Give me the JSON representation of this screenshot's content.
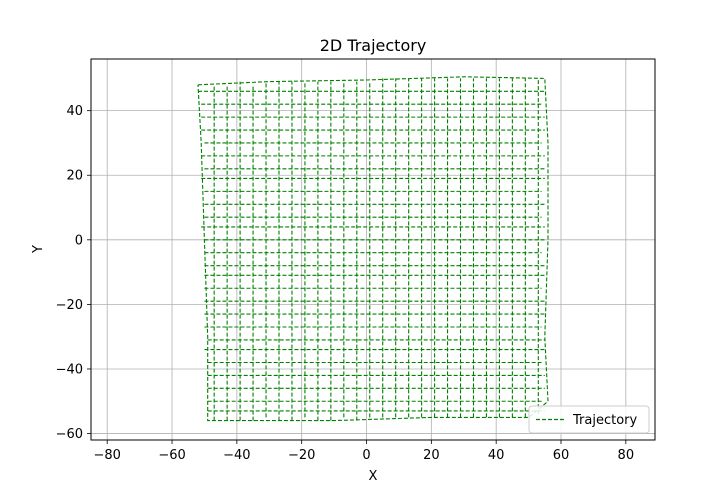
{
  "chart_data": {
    "type": "line",
    "title": "2D Trajectory",
    "xlabel": "X",
    "ylabel": "Y",
    "xlim": [
      -85,
      89
    ],
    "ylim": [
      -62,
      56
    ],
    "xticks": [
      -80,
      -60,
      -40,
      -20,
      0,
      20,
      40,
      60,
      80
    ],
    "yticks": [
      -60,
      -40,
      -20,
      0,
      20,
      40
    ],
    "grid": true,
    "legend": {
      "placement": "lower-right"
    },
    "series": [
      {
        "name": "Trajectory",
        "color": "#008000",
        "style": "dashed",
        "boundary": [
          [
            -52,
            48
          ],
          [
            -30,
            49
          ],
          [
            0,
            49.5
          ],
          [
            30,
            50.5
          ],
          [
            55,
            50
          ],
          [
            56,
            30
          ],
          [
            56,
            0
          ],
          [
            55,
            -30
          ],
          [
            56,
            -50
          ],
          [
            50,
            -55
          ],
          [
            20,
            -55
          ],
          [
            -10,
            -56
          ],
          [
            -49,
            -56
          ],
          [
            -49,
            -30
          ],
          [
            -50,
            0
          ],
          [
            -51,
            30
          ],
          [
            -52,
            48
          ]
        ],
        "horizontal_passes": [
          {
            "y": 46,
            "x": [
              -52,
              55
            ]
          },
          {
            "y": 42,
            "x": [
              -51,
              54
            ]
          },
          {
            "y": 38,
            "x": [
              -51,
              55
            ]
          },
          {
            "y": 34,
            "x": [
              -51,
              55
            ]
          },
          {
            "y": 30,
            "x": [
              -50,
              54
            ]
          },
          {
            "y": 26,
            "x": [
              -51,
              55
            ]
          },
          {
            "y": 22,
            "x": [
              -50,
              55
            ]
          },
          {
            "y": 19,
            "x": [
              -51,
              55
            ]
          },
          {
            "y": 15,
            "x": [
              -50,
              54
            ]
          },
          {
            "y": 11,
            "x": [
              -50,
              55
            ]
          },
          {
            "y": 7,
            "x": [
              -50,
              54
            ]
          },
          {
            "y": 4,
            "x": [
              -51,
              55
            ]
          },
          {
            "y": 0,
            "x": [
              -50,
              55
            ]
          },
          {
            "y": -4,
            "x": [
              -50,
              54
            ]
          },
          {
            "y": -8,
            "x": [
              -50,
              55
            ]
          },
          {
            "y": -11,
            "x": [
              -50,
              55
            ]
          },
          {
            "y": -15,
            "x": [
              -50,
              54
            ]
          },
          {
            "y": -19,
            "x": [
              -50,
              55
            ]
          },
          {
            "y": -23,
            "x": [
              -50,
              55
            ]
          },
          {
            "y": -27,
            "x": [
              -50,
              54
            ]
          },
          {
            "y": -31,
            "x": [
              -49,
              55
            ]
          },
          {
            "y": -34,
            "x": [
              -50,
              55
            ]
          },
          {
            "y": -38,
            "x": [
              -49,
              54
            ]
          },
          {
            "y": -42,
            "x": [
              -49,
              55
            ]
          },
          {
            "y": -46,
            "x": [
              -49,
              55
            ]
          },
          {
            "y": -50,
            "x": [
              -49,
              54
            ]
          },
          {
            "y": -53,
            "x": [
              -49,
              55
            ]
          }
        ],
        "vertical_passes": [
          {
            "x": -47,
            "y": [
              -56,
              48
            ]
          },
          {
            "x": -43,
            "y": [
              -56,
              48
            ]
          },
          {
            "x": -39,
            "y": [
              -56,
              49
            ]
          },
          {
            "x": -35,
            "y": [
              -56,
              48
            ]
          },
          {
            "x": -31,
            "y": [
              -55,
              49
            ]
          },
          {
            "x": -27,
            "y": [
              -56,
              49
            ]
          },
          {
            "x": -23,
            "y": [
              -56,
              49
            ]
          },
          {
            "x": -19,
            "y": [
              -55,
              49
            ]
          },
          {
            "x": -15,
            "y": [
              -56,
              49
            ]
          },
          {
            "x": -11,
            "y": [
              -56,
              49
            ]
          },
          {
            "x": -7,
            "y": [
              -55,
              49
            ]
          },
          {
            "x": -3,
            "y": [
              -56,
              49
            ]
          },
          {
            "x": 1,
            "y": [
              -55,
              49
            ]
          },
          {
            "x": 5,
            "y": [
              -55,
              50
            ]
          },
          {
            "x": 9,
            "y": [
              -55,
              50
            ]
          },
          {
            "x": 13,
            "y": [
              -55,
              50
            ]
          },
          {
            "x": 17,
            "y": [
              -55,
              50
            ]
          },
          {
            "x": 21,
            "y": [
              -55,
              50
            ]
          },
          {
            "x": 25,
            "y": [
              -55,
              50
            ]
          },
          {
            "x": 29,
            "y": [
              -55,
              50
            ]
          },
          {
            "x": 33,
            "y": [
              -55,
              50
            ]
          },
          {
            "x": 37,
            "y": [
              -55,
              50
            ]
          },
          {
            "x": 41,
            "y": [
              -55,
              50
            ]
          },
          {
            "x": 45,
            "y": [
              -55,
              50
            ]
          },
          {
            "x": 49,
            "y": [
              -55,
              50
            ]
          },
          {
            "x": 53,
            "y": [
              -54,
              50
            ]
          }
        ]
      }
    ]
  }
}
